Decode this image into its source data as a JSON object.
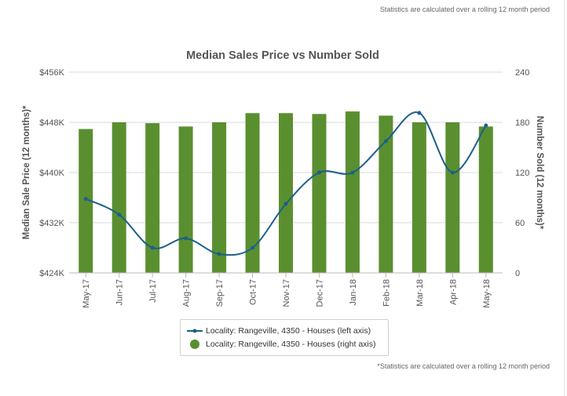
{
  "header_note": "Statistics are calculated over a rolling 12 month period",
  "footer_note": "*Statistics are calculated over a rolling 12 month period",
  "colors": {
    "line": "#1c5f8a",
    "bars": "#5a8f30",
    "grid": "#d9d9d9",
    "text": "#555555"
  },
  "chart_data": {
    "type": "bar+line",
    "title": "Median Sales Price vs Number Sold",
    "ylabel_left": "Median Sale Price (12 months)*",
    "ylabel_right": "Number Sold (12 months)*",
    "categories": [
      "May-17",
      "Jun-17",
      "Jul-17",
      "Aug-17",
      "Sep-17",
      "Oct-17",
      "Nov-17",
      "Dec-17",
      "Jan-18",
      "Feb-18",
      "Mar-18",
      "Apr-18",
      "May-18"
    ],
    "ylim_left": [
      424000,
      456000
    ],
    "left_ticks": [
      "$424K",
      "$432K",
      "$440K",
      "$448K",
      "$456K"
    ],
    "ylim_right": [
      0,
      240
    ],
    "right_ticks": [
      "0",
      "60",
      "120",
      "180",
      "240"
    ],
    "grid": true,
    "legend_position": "bottom",
    "series": [
      {
        "name": "Locality: Rangeville, 4350 - Houses (left axis)",
        "type": "line",
        "axis": "left",
        "values": [
          435800,
          433300,
          428000,
          429500,
          427000,
          428000,
          435000,
          440000,
          440000,
          445000,
          449500,
          440000,
          447500
        ]
      },
      {
        "name": "Locality: Rangeville, 4350 - Houses (right axis)",
        "type": "bar",
        "axis": "right",
        "values": [
          172,
          180,
          179,
          175,
          180,
          191,
          191,
          190,
          193,
          188,
          180,
          180,
          175
        ]
      }
    ]
  }
}
